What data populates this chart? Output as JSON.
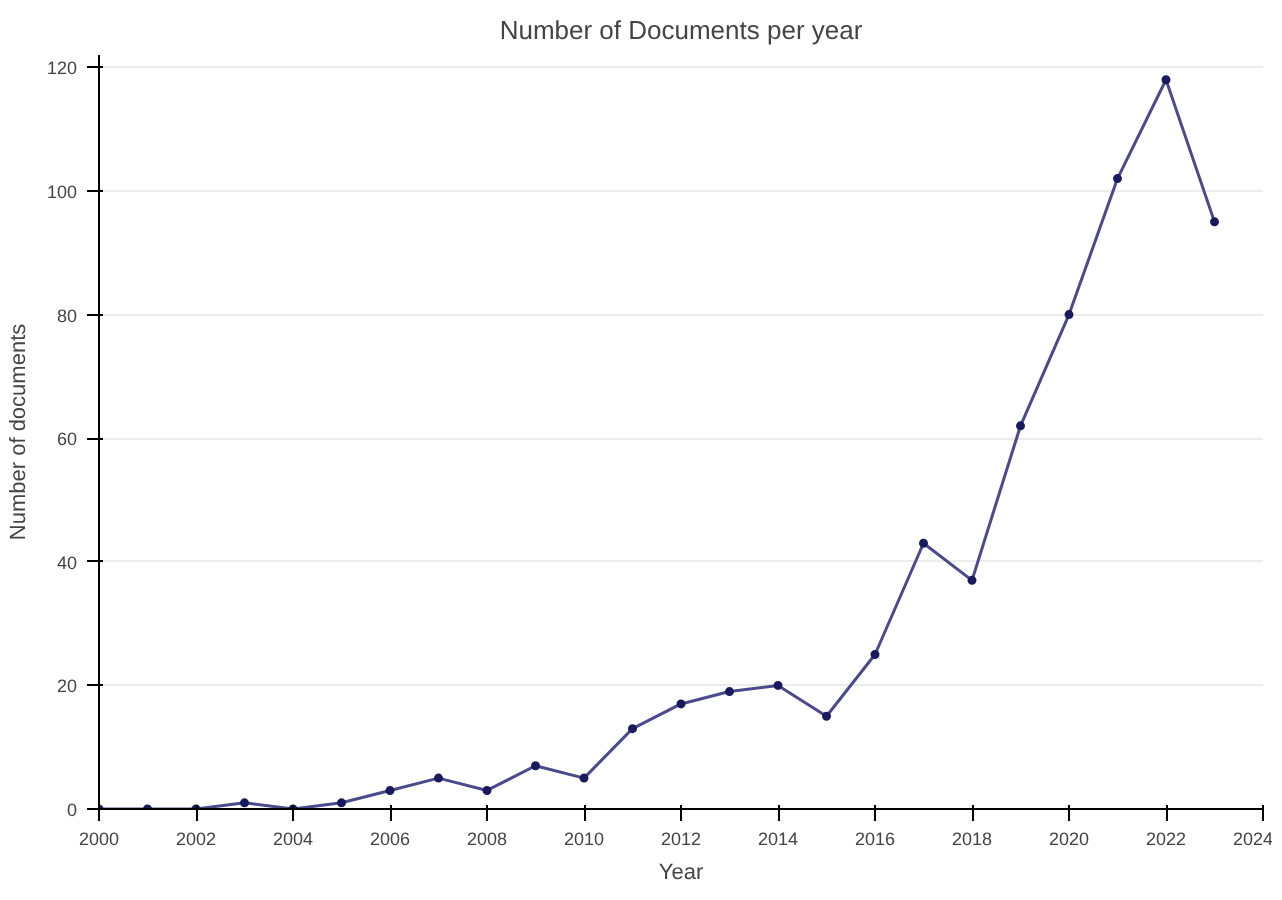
{
  "chart_data": {
    "type": "line",
    "title": "Number of Documents per year",
    "xlabel": "Year",
    "ylabel": "Number of documents",
    "x": [
      2000,
      2001,
      2002,
      2003,
      2004,
      2005,
      2006,
      2007,
      2008,
      2009,
      2010,
      2011,
      2012,
      2013,
      2014,
      2015,
      2016,
      2017,
      2018,
      2019,
      2020,
      2021,
      2022,
      2023
    ],
    "series": [
      {
        "color": "#4b4a8c",
        "values": [
          0,
          0,
          0,
          1,
          0,
          1,
          3,
          5,
          3,
          7,
          5,
          13,
          17,
          19,
          20,
          15,
          25,
          43,
          37,
          62,
          80,
          102,
          118,
          95
        ]
      }
    ],
    "xlim": [
      2000,
      2024
    ],
    "xticks": [
      2000,
      2002,
      2004,
      2006,
      2008,
      2010,
      2012,
      2014,
      2016,
      2018,
      2020,
      2022,
      2024
    ],
    "ylim": [
      0,
      122
    ],
    "yticks": [
      0,
      20,
      40,
      60,
      80,
      100,
      120
    ],
    "grid": "y",
    "marker": "circle",
    "line_style": "solid"
  }
}
